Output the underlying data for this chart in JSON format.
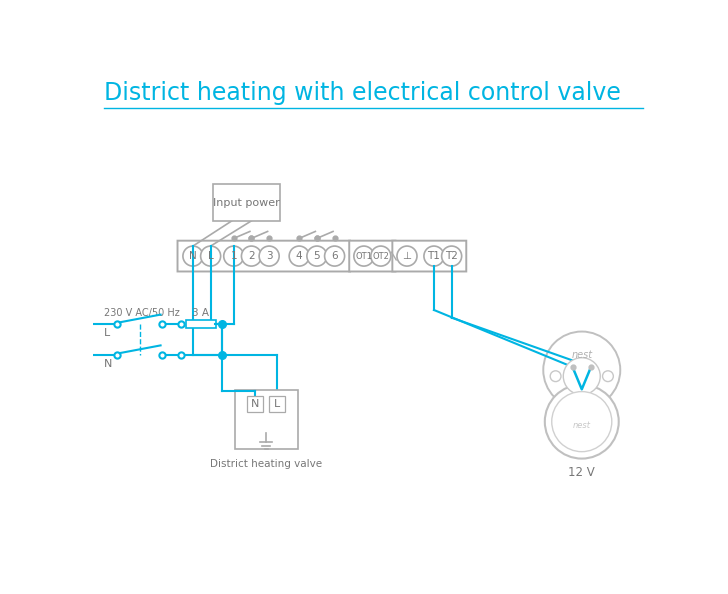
{
  "title": "District heating with electrical control valve",
  "title_color": "#00b5e2",
  "title_fontsize": 17,
  "bg_color": "#ffffff",
  "line_color": "#00b5e2",
  "box_color": "#aaaaaa",
  "text_color": "#777777",
  "terminal_labels": [
    "N",
    "L",
    "1",
    "2",
    "3",
    "4",
    "5",
    "6",
    "OT1",
    "OT2",
    "⊥",
    "T1",
    "T2"
  ],
  "fuse_label": "3 A",
  "voltage_label": "230 V AC/50 Hz",
  "L_label": "L",
  "N_label": "N",
  "input_power_label": "Input power",
  "district_valve_label": "District heating valve",
  "nest_12v_label": "12 V",
  "nest_text": "nest"
}
